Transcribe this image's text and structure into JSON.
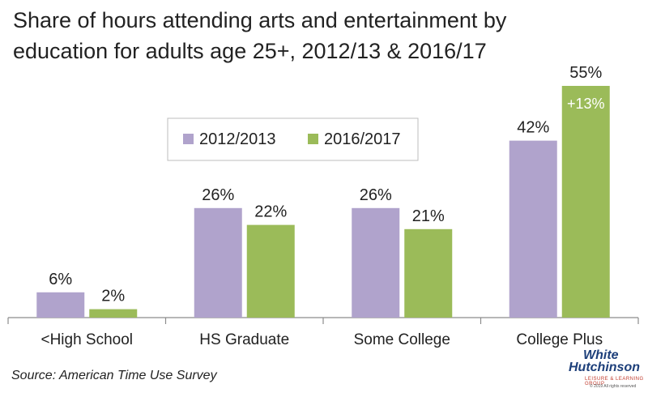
{
  "title_line1": "Share of hours attending arts and entertainment by",
  "title_line2": "education for adults age 25+, 2012/13 & 2016/17",
  "source": "Source: American Time Use Survey",
  "logo": {
    "line1": "White",
    "line2": "Hutchinson",
    "line3": "LEISURE & LEARNING GROUP",
    "line4": "© 2019 All rights reserved"
  },
  "chart_data": {
    "type": "bar",
    "categories": [
      "<High School",
      "HS Graduate",
      "Some College",
      "College Plus"
    ],
    "series": [
      {
        "name": "2012/2013",
        "values": [
          6,
          26,
          26,
          42
        ],
        "labels": [
          "6%",
          "26%",
          "26%",
          "42%"
        ],
        "color": "#b0a3cc"
      },
      {
        "name": "2016/2017",
        "values": [
          2,
          22,
          21,
          55
        ],
        "labels": [
          "2%",
          "22%",
          "21%",
          "55%"
        ],
        "color": "#9bbb59"
      }
    ],
    "annotations": [
      {
        "category": "College Plus",
        "series": "2016/2017",
        "text": "+13%"
      }
    ],
    "ylim": [
      0,
      55
    ],
    "grid": false,
    "legend_position": "top-center"
  }
}
